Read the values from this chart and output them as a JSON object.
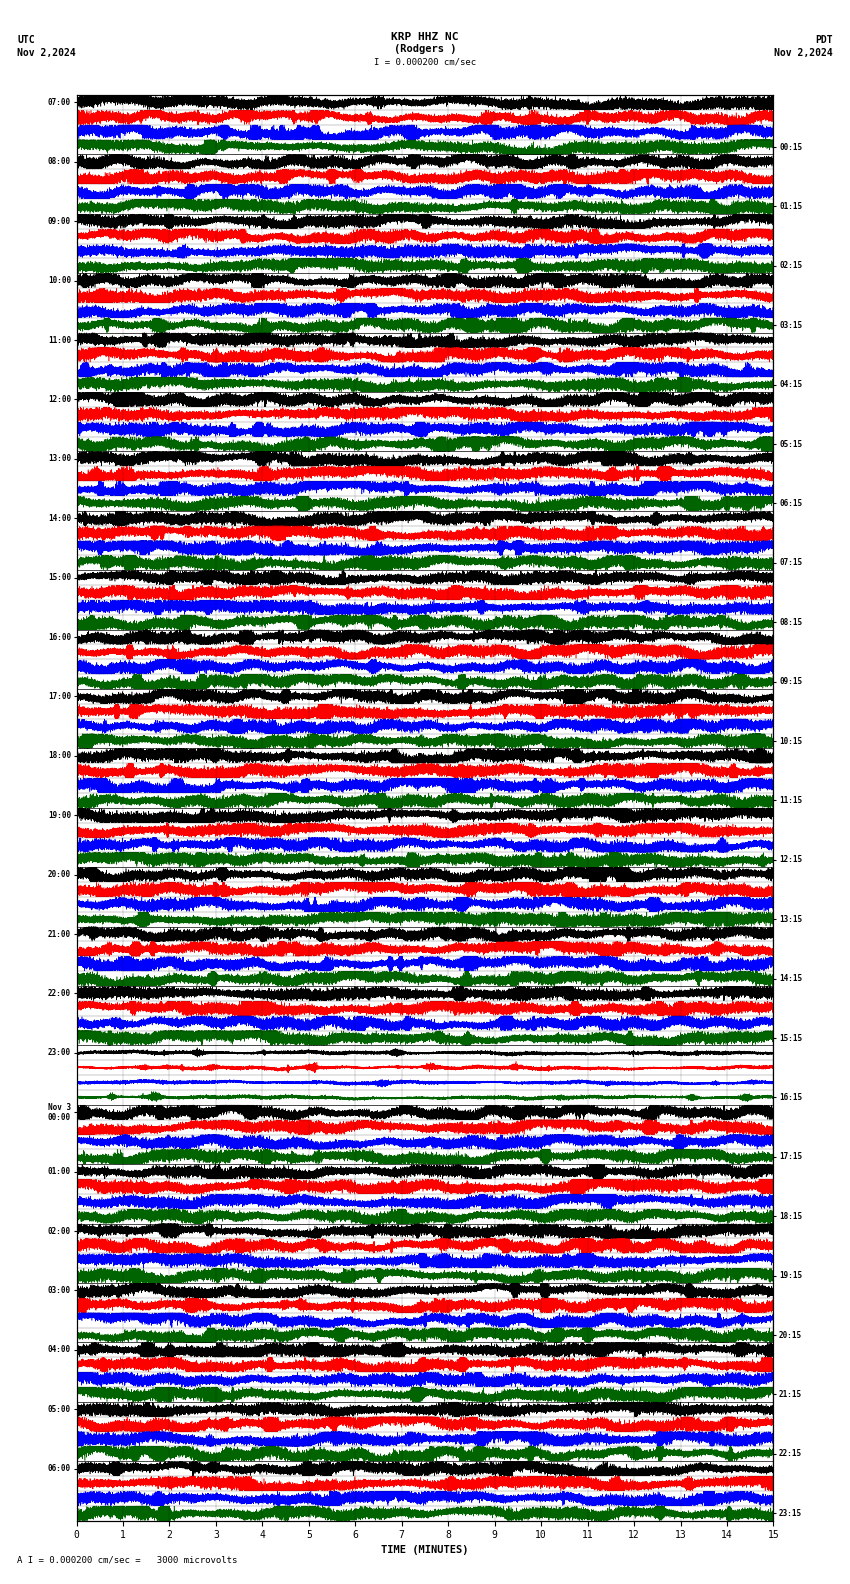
{
  "title_line1": "KRP HHZ NC",
  "title_line2": "(Rodgers )",
  "title_scale": "I = 0.000200 cm/sec",
  "utc_label": "UTC",
  "utc_date": "Nov 2,2024",
  "pdt_label": "PDT",
  "pdt_date": "Nov 2,2024",
  "bottom_note": "A I = 0.000200 cm/sec =   3000 microvolts",
  "xlabel": "TIME (MINUTES)",
  "left_times": [
    "07:00",
    "08:00",
    "09:00",
    "10:00",
    "11:00",
    "12:00",
    "13:00",
    "14:00",
    "15:00",
    "16:00",
    "17:00",
    "18:00",
    "19:00",
    "20:00",
    "21:00",
    "22:00",
    "23:00",
    "Nov 3\n00:00",
    "01:00",
    "02:00",
    "03:00",
    "04:00",
    "05:00",
    "06:00"
  ],
  "right_times": [
    "00:15",
    "01:15",
    "02:15",
    "03:15",
    "04:15",
    "05:15",
    "06:15",
    "07:15",
    "08:15",
    "09:15",
    "10:15",
    "11:15",
    "12:15",
    "13:15",
    "14:15",
    "15:15",
    "16:15",
    "17:15",
    "18:15",
    "19:15",
    "20:15",
    "21:15",
    "22:15",
    "23:15"
  ],
  "n_rows": 24,
  "sub_rows": 4,
  "minutes_per_row": 15,
  "sample_rate": 40,
  "colors": [
    "black",
    "red",
    "blue",
    "#006400"
  ],
  "background_color": "white",
  "line_width": 0.4,
  "amplitude_scale": 0.42,
  "quiet_row": 16,
  "quiet_amplitude": 0.12,
  "xlim": [
    0,
    15
  ],
  "xticks": [
    0,
    1,
    2,
    3,
    4,
    5,
    6,
    7,
    8,
    9,
    10,
    11,
    12,
    13,
    14,
    15
  ],
  "separator_color": "black",
  "separator_lw": 0.5,
  "sub_separator_color": "black",
  "sub_separator_lw": 0.3
}
